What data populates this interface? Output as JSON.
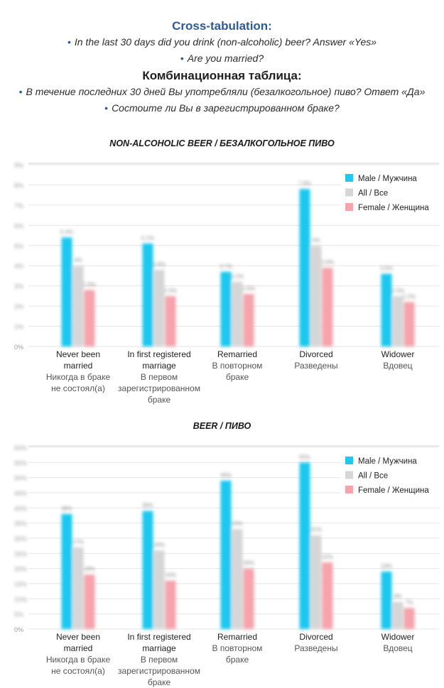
{
  "header": {
    "title_en": "Cross-tabulation:",
    "q1_en": "In the last 30 days did you drink (non-alcoholic) beer? Answer «Yes»",
    "q2_en": "Are you married?",
    "title_ru": "Комбинационная таблица:",
    "q1_ru": "В течение последних 30 дней Вы употребляли (безалкогольное) пиво? Ответ «Да»",
    "q2_ru": "Состоите ли Вы в зарегистрированном браке?",
    "bullet": "•"
  },
  "colors": {
    "male": "#1ec8ef",
    "all": "#d6d6d6",
    "female": "#f6a3ab",
    "grid": "#e6e6e6"
  },
  "chart_data": [
    {
      "type": "bar",
      "title": "NON-ALCOHOLIC BEER / БЕЗАЛКОГОЛЬНОЕ ПИВО",
      "categories": [
        {
          "en": [
            "Never been",
            "married"
          ],
          "ru": [
            "Никогда в браке",
            "не состоял(а)"
          ]
        },
        {
          "en": [
            "In first registered",
            "marriage"
          ],
          "ru": [
            "В первом",
            "зарегистрированном",
            "браке"
          ]
        },
        {
          "en": [
            "Remarried"
          ],
          "ru": [
            "В повторном",
            "браке"
          ]
        },
        {
          "en": [
            "Divorced"
          ],
          "ru": [
            "Разведены"
          ]
        },
        {
          "en": [
            "Widower"
          ],
          "ru": [
            "Вдовец"
          ]
        }
      ],
      "series": [
        {
          "name": "Male / Мужчина",
          "key": "male",
          "values": [
            5.4,
            5.1,
            3.7,
            7.8,
            3.6
          ]
        },
        {
          "name": "All / Все",
          "key": "all",
          "values": [
            4.0,
            3.8,
            3.2,
            5.0,
            2.5
          ]
        },
        {
          "name": "Female / Женщина",
          "key": "female",
          "values": [
            2.8,
            2.5,
            2.6,
            3.9,
            2.2
          ]
        }
      ],
      "ylim": [
        0,
        9
      ],
      "yticks": [
        "0%",
        "1%",
        "2%",
        "3%",
        "4%",
        "5%",
        "6%",
        "7%",
        "8%",
        "9%"
      ],
      "legend_position": "top-right",
      "grid": true
    },
    {
      "type": "bar",
      "title": "BEER / ПИВО",
      "categories": [
        {
          "en": [
            "Never been",
            "married"
          ],
          "ru": [
            "Никогда в браке",
            "не состоял(а)"
          ]
        },
        {
          "en": [
            "In first registered",
            "marriage"
          ],
          "ru": [
            "В первом",
            "зарегистрированном",
            "браке"
          ]
        },
        {
          "en": [
            "Remarried"
          ],
          "ru": [
            "В повторном",
            "браке"
          ]
        },
        {
          "en": [
            "Divorced"
          ],
          "ru": [
            "Разведены"
          ]
        },
        {
          "en": [
            "Widower"
          ],
          "ru": [
            "Вдовец"
          ]
        }
      ],
      "series": [
        {
          "name": "Male / Мужчина",
          "key": "male",
          "values": [
            38,
            39,
            49,
            55,
            19
          ]
        },
        {
          "name": "All / Все",
          "key": "all",
          "values": [
            27,
            26,
            33,
            31,
            9
          ]
        },
        {
          "name": "Female / Женщина",
          "key": "female",
          "values": [
            18,
            16,
            20,
            22,
            7
          ]
        }
      ],
      "ylim": [
        0,
        60
      ],
      "yticks": [
        "0%",
        "5%",
        "10%",
        "15%",
        "20%",
        "25%",
        "30%",
        "35%",
        "40%",
        "45%",
        "50%",
        "55%",
        "60%"
      ],
      "legend_position": "top-right",
      "grid": true
    }
  ]
}
